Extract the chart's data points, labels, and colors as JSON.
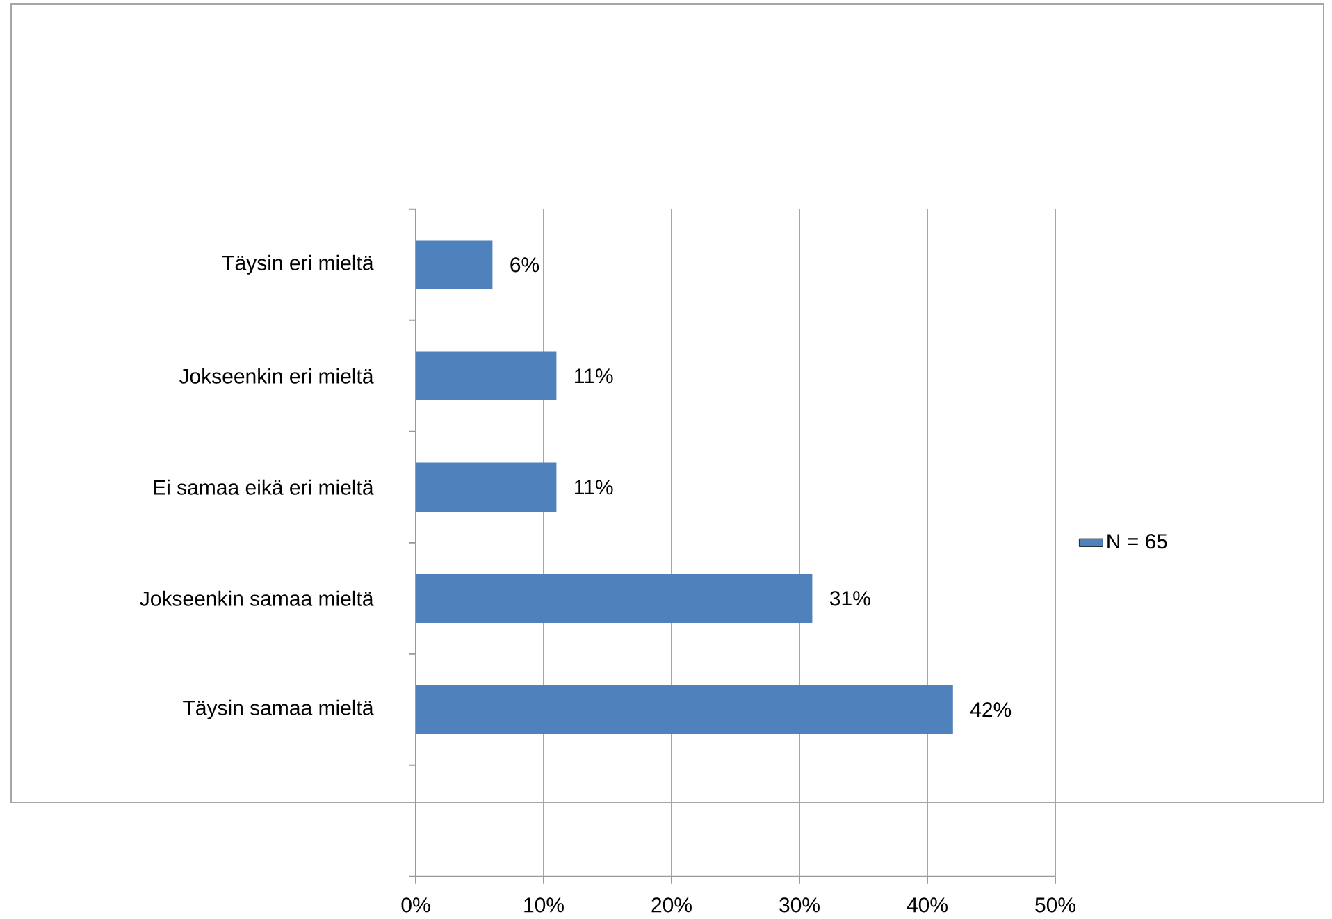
{
  "chart_data": {
    "type": "bar",
    "orientation": "horizontal",
    "categories": [
      "Täysin eri mieltä",
      "Jokseenkin eri mieltä",
      "Ei samaa eikä eri mieltä",
      "Jokseenkin samaa mieltä",
      "Täysin samaa mieltä",
      null
    ],
    "series": [
      {
        "name": "N = 65",
        "color": "#4f81bd",
        "values": [
          6,
          11,
          11,
          31,
          42,
          null
        ],
        "value_labels": [
          "6%",
          "11%",
          "11%",
          "31%",
          "42%",
          null
        ]
      }
    ],
    "xlim": [
      0,
      50
    ],
    "xticks": [
      {
        "value": 0,
        "label": "0%"
      },
      {
        "value": 10,
        "label": "10%"
      },
      {
        "value": 20,
        "label": "20%"
      },
      {
        "value": 30,
        "label": "30%"
      },
      {
        "value": 40,
        "label": "40%"
      },
      {
        "value": 50,
        "label": "50%"
      }
    ],
    "grid": "x",
    "legend": "right"
  }
}
